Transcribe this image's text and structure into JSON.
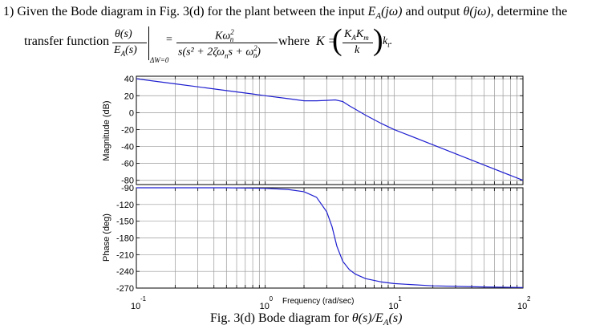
{
  "question": {
    "number": "1)",
    "text_before": "Given the Bode diagram in Fig. 3(d) for the plant between the input",
    "input_signal": "E",
    "input_sub": "A",
    "input_arg": "(jω)",
    "text_mid": "and output",
    "output_signal": "θ(jω)",
    "text_after": ", determine the",
    "line2": "transfer function"
  },
  "formula": {
    "lhs_num": "θ(s)",
    "lhs_den": "E",
    "lhs_den_sub": "A",
    "lhs_den_arg": "(s)",
    "condition": "ΔW=0",
    "equals": "=",
    "rhs_num": "Kω",
    "rhs_num_sub": "n",
    "rhs_num_sup": "2",
    "rhs_den": "s(s² + 2ζω",
    "rhs_den_sub1": "n",
    "rhs_den_mid": "s + ω",
    "rhs_den_sub2": "n",
    "rhs_den_sup2": "2",
    "rhs_den_end": ")",
    "where": "where",
    "k_lhs": "K =",
    "k_num": "K",
    "k_num_sub1": "A",
    "k_num_mid": "K",
    "k_num_sub2": "m",
    "k_den": "k",
    "k_tail": "k",
    "k_tail_sub": "t",
    "k_tail_end": "."
  },
  "chart_data": {
    "type": "line",
    "x_scale": "log",
    "xlabel": "Frequency (rad/sec)",
    "xlim": [
      0.1,
      100
    ],
    "x_ticks": [
      {
        "base": "10",
        "exp": "-1",
        "value": 0.1
      },
      {
        "base": "10",
        "exp": "0",
        "value": 1
      },
      {
        "base": "10",
        "exp": "1",
        "value": 10
      },
      {
        "base": "10",
        "exp": "2",
        "value": 100
      }
    ],
    "grid": true,
    "panels": [
      {
        "ylabel": "Magnitude (dB)",
        "ylim": [
          -85,
          43
        ],
        "yticks": [
          "40",
          "20",
          "0",
          "-20",
          "-40",
          "-60",
          "-80"
        ],
        "ytick_values": [
          40,
          20,
          0,
          -20,
          -40,
          -60,
          -80
        ],
        "series": [
          {
            "color": "#1f1fd0",
            "x": [
              0.1,
              0.15,
              0.2,
              0.3,
              0.5,
              0.8,
              1,
              1.5,
              2,
              2.5,
              3,
              3.5,
              4,
              4.5,
              5,
              6,
              8,
              10,
              20,
              50,
              100
            ],
            "y": [
              40,
              36.5,
              34,
              30.5,
              26,
              22,
              20,
              16.5,
              14,
              14,
              14.5,
              15,
              13,
              8,
              4,
              -3,
              -13,
              -20,
              -38,
              -62,
              -80
            ]
          }
        ]
      },
      {
        "ylabel": "Phase (deg)",
        "ylim": [
          -270,
          -90
        ],
        "yticks": [
          "-90",
          "-120",
          "-150",
          "-180",
          "-210",
          "-240",
          "-270"
        ],
        "ytick_values": [
          -90,
          -120,
          -150,
          -180,
          -210,
          -240,
          -270
        ],
        "series": [
          {
            "color": "#1f1fd0",
            "x": [
              0.1,
              0.5,
              1,
              1.5,
              2,
              2.5,
              3,
              3.3,
              3.6,
              4,
              4.5,
              5,
              6,
              8,
              10,
              20,
              50,
              100
            ],
            "y": [
              -90,
              -90,
              -91,
              -93,
              -97,
              -107,
              -133,
              -160,
              -195,
              -222,
              -237,
              -245,
              -253,
              -259,
              -262,
              -266,
              -268,
              -269
            ]
          }
        ]
      }
    ]
  },
  "caption": {
    "text": "Fig. 3(d) Bode diagram for",
    "expr": "θ(s)/E",
    "expr_sub": "A",
    "expr_end": "(s)"
  }
}
